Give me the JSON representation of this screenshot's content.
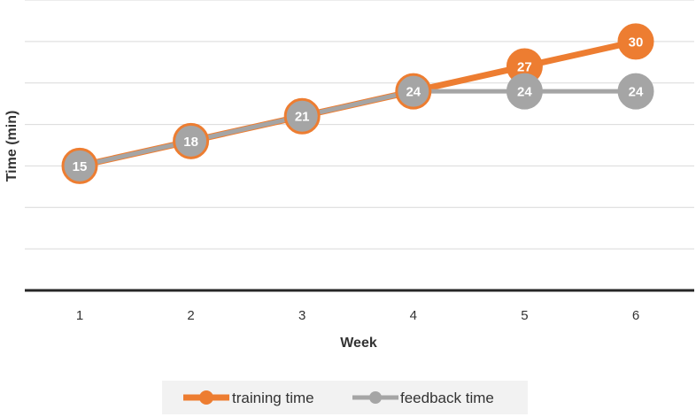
{
  "chart_data": {
    "type": "line",
    "title": "",
    "xlabel": "Week",
    "ylabel": "Time (min)",
    "categories": [
      "1",
      "2",
      "3",
      "4",
      "5",
      "6"
    ],
    "ylim": [
      0,
      35
    ],
    "grid": true,
    "legend_position": "bottom",
    "series": [
      {
        "name": "training time",
        "values": [
          15,
          18,
          21,
          24,
          27,
          30
        ],
        "color": "#ED7D31",
        "labels": [
          "",
          "",
          "",
          "",
          "27",
          "30"
        ]
      },
      {
        "name": "feedback time",
        "values": [
          15,
          18,
          21,
          24,
          24,
          24
        ],
        "color": "#A5A5A5",
        "labels": [
          "15",
          "18",
          "21",
          "24",
          "24",
          "24"
        ]
      }
    ]
  }
}
